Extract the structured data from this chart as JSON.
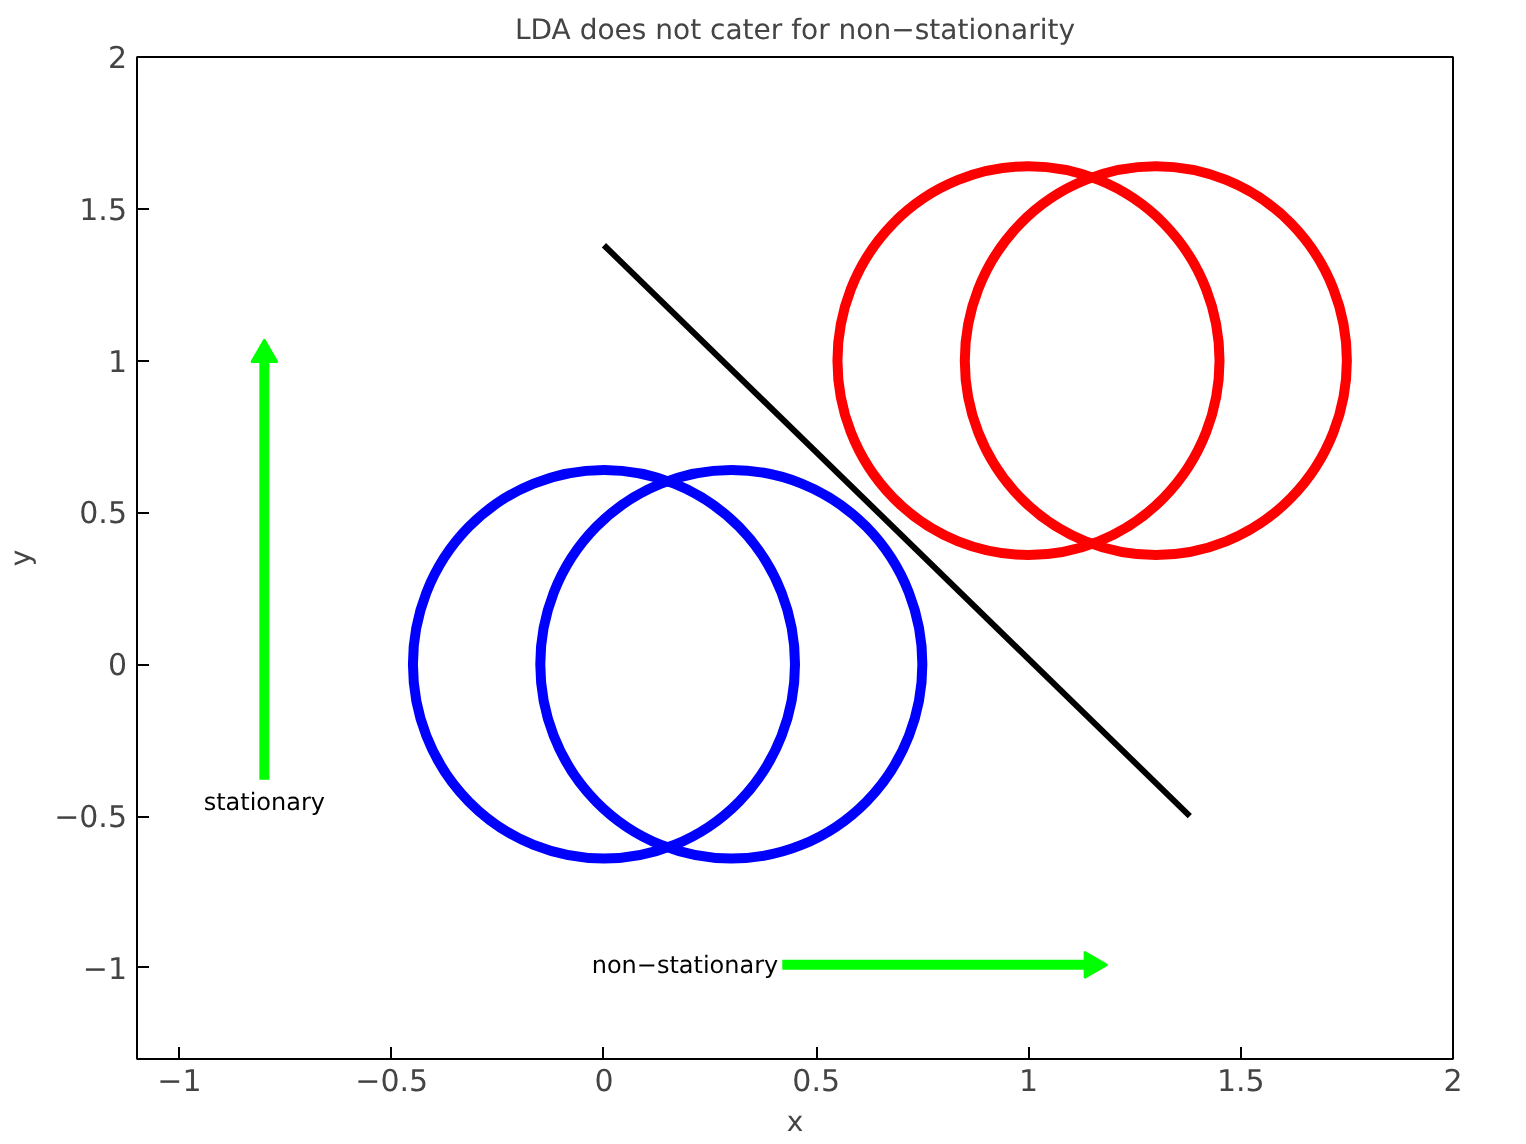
{
  "chart_data": {
    "type": "line",
    "title": "LDA does not cater for non−stationarity",
    "xlabel": "x",
    "ylabel": "y",
    "xlim": [
      -1.1,
      2
    ],
    "ylim": [
      -1.3,
      2
    ],
    "xticks": [
      -1,
      -0.5,
      0,
      0.5,
      1,
      1.5,
      2
    ],
    "yticks": [
      -1,
      -0.5,
      0,
      0.5,
      1,
      1.5,
      2
    ],
    "grid": false,
    "series": [
      {
        "color": "#000000",
        "x": [
          0,
          1.38
        ],
        "values": [
          1.38,
          -0.5
        ]
      },
      {
        "name": "stationary",
        "color": "#00ff00",
        "x": [
          -0.8,
          -0.8
        ],
        "values": [
          -0.38,
          1.02
        ],
        "marker": "triangle"
      },
      {
        "name": "non−stationary",
        "color": "#00ff00",
        "x": [
          0.42,
          1.15
        ],
        "values": [
          -0.99,
          -0.99
        ],
        "marker": "triangle"
      }
    ]
  }
}
